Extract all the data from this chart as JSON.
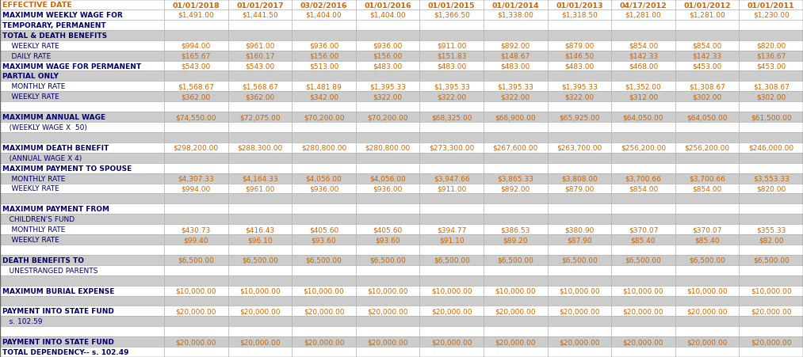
{
  "columns": [
    "EFFECTIVE DATE",
    "01/01/2018",
    "01/01/2017",
    "03/02/2016",
    "01/01/2016",
    "01/01/2015",
    "01/01/2014",
    "01/01/2013",
    "04/17/2012",
    "01/01/2012",
    "01/01/2011"
  ],
  "rows": [
    {
      "label": "MAXIMUM WEEKLY WAGE FOR",
      "indent": false,
      "bold": true,
      "values": [
        "$1,491.00",
        "$1,441.50",
        "$1,404.00",
        "$1,404.00",
        "$1,366.50",
        "$1,338.00",
        "$1,318.50",
        "$1,281.00",
        "$1,281.00",
        "$1,230.00"
      ],
      "bg": "white"
    },
    {
      "label": "TEMPORARY, PERMANENT",
      "indent": false,
      "bold": true,
      "values": [
        "",
        "",
        "",
        "",
        "",
        "",
        "",
        "",
        "",
        ""
      ],
      "bg": "white"
    },
    {
      "label": "TOTAL & DEATH BENEFITS",
      "indent": false,
      "bold": true,
      "values": [
        "",
        "",
        "",
        "",
        "",
        "",
        "",
        "",
        "",
        ""
      ],
      "bg": "silver"
    },
    {
      "label": "    WEEKLY RATE",
      "indent": true,
      "bold": false,
      "values": [
        "$994.00",
        "$961.00",
        "$936.00",
        "$936.00",
        "$911.00",
        "$892.00",
        "$879.00",
        "$854.00",
        "$854.00",
        "$820.00"
      ],
      "bg": "white"
    },
    {
      "label": "    DAILY RATE",
      "indent": true,
      "bold": false,
      "values": [
        "$165.67",
        "$160.17",
        "$156.00",
        "$156.00",
        "$151.83",
        "$148.67",
        "$146.50",
        "$142.33",
        "$142.33",
        "$136.67"
      ],
      "bg": "silver"
    },
    {
      "label": "MAXIMUM WAGE FOR PERMANENT",
      "indent": false,
      "bold": true,
      "values": [
        "$543.00",
        "$543.00",
        "$513.00",
        "$483.00",
        "$483.00",
        "$483.00",
        "$483.00",
        "$468.00",
        "$453.00",
        "$453.00"
      ],
      "bg": "white"
    },
    {
      "label": "PARTIAL ONLY",
      "indent": false,
      "bold": true,
      "values": [
        "",
        "",
        "",
        "",
        "",
        "",
        "",
        "",
        "",
        ""
      ],
      "bg": "silver"
    },
    {
      "label": "    MONTHLY RATE",
      "indent": true,
      "bold": false,
      "values": [
        "$1,568.67",
        "$1,568.67",
        "$1,481.89",
        "$1,395.33",
        "$1,395.33",
        "$1,395.33",
        "$1,395.33",
        "$1,352.00",
        "$1,308.67",
        "$1,308.67"
      ],
      "bg": "white"
    },
    {
      "label": "    WEEKLY RATE",
      "indent": true,
      "bold": false,
      "values": [
        "$362.00",
        "$362.00",
        "$342.00",
        "$322.00",
        "$322.00",
        "$322.00",
        "$322.00",
        "$312.00",
        "$302.00",
        "$302.00"
      ],
      "bg": "silver"
    },
    {
      "label": "",
      "indent": false,
      "bold": false,
      "values": [
        "",
        "",
        "",
        "",
        "",
        "",
        "",
        "",
        "",
        ""
      ],
      "bg": "white"
    },
    {
      "label": "MAXIMUM ANNUAL WAGE",
      "indent": false,
      "bold": true,
      "values": [
        "$74,550.00",
        "$72,075.00",
        "$70,200.00",
        "$70,200.00",
        "$68,325.00",
        "$66,900.00",
        "$65,925.00",
        "$64,050.00",
        "$64,050.00",
        "$61,500.00"
      ],
      "bg": "silver"
    },
    {
      "label": "   (WEEKLY WAGE X  50)",
      "indent": true,
      "bold": false,
      "values": [
        "",
        "",
        "",
        "",
        "",
        "",
        "",
        "",
        "",
        ""
      ],
      "bg": "white"
    },
    {
      "label": "",
      "indent": false,
      "bold": false,
      "values": [
        "",
        "",
        "",
        "",
        "",
        "",
        "",
        "",
        "",
        ""
      ],
      "bg": "silver"
    },
    {
      "label": "MAXIMUM DEATH BENEFIT",
      "indent": false,
      "bold": true,
      "values": [
        "$298,200.00",
        "$288,300.00",
        "$280,800.00",
        "$280,800.00",
        "$273,300.00",
        "$267,600.00",
        "$263,700.00",
        "$256,200.00",
        "$256,200.00",
        "$246,000.00"
      ],
      "bg": "white"
    },
    {
      "label": "   (ANNUAL WAGE X 4)",
      "indent": true,
      "bold": false,
      "values": [
        "",
        "",
        "",
        "",
        "",
        "",
        "",
        "",
        "",
        ""
      ],
      "bg": "silver"
    },
    {
      "label": "MAXIMUM PAYMENT TO SPOUSE",
      "indent": false,
      "bold": true,
      "values": [
        "",
        "",
        "",
        "",
        "",
        "",
        "",
        "",
        "",
        ""
      ],
      "bg": "white"
    },
    {
      "label": "    MONTHLY RATE",
      "indent": true,
      "bold": false,
      "values": [
        "$4,307.33",
        "$4,164.33",
        "$4,056.00",
        "$4,056.00",
        "$3,947.66",
        "$3,865.33",
        "$3,808.00",
        "$3,700.66",
        "$3,700.66",
        "$3,553.33"
      ],
      "bg": "silver"
    },
    {
      "label": "    WEEKLY RATE",
      "indent": true,
      "bold": false,
      "values": [
        "$994.00",
        "$961.00",
        "$936.00",
        "$936.00",
        "$911.00",
        "$892.00",
        "$879.00",
        "$854.00",
        "$854.00",
        "$820.00"
      ],
      "bg": "white"
    },
    {
      "label": "",
      "indent": false,
      "bold": false,
      "values": [
        "",
        "",
        "",
        "",
        "",
        "",
        "",
        "",
        "",
        ""
      ],
      "bg": "silver"
    },
    {
      "label": "MAXIMUM PAYMENT FROM",
      "indent": false,
      "bold": true,
      "values": [
        "",
        "",
        "",
        "",
        "",
        "",
        "",
        "",
        "",
        ""
      ],
      "bg": "white"
    },
    {
      "label": "   CHILDREN'S FUND",
      "indent": true,
      "bold": false,
      "values": [
        "",
        "",
        "",
        "",
        "",
        "",
        "",
        "",
        "",
        ""
      ],
      "bg": "silver"
    },
    {
      "label": "    MONTHLY RATE",
      "indent": true,
      "bold": false,
      "values": [
        "$430.73",
        "$416.43",
        "$405.60",
        "$405.60",
        "$394.77",
        "$386.53",
        "$380.90",
        "$370.07",
        "$370.07",
        "$355.33"
      ],
      "bg": "white"
    },
    {
      "label": "    WEEKLY RATE",
      "indent": true,
      "bold": false,
      "values": [
        "$99.40",
        "$96.10",
        "$93.60",
        "$93.60",
        "$91.10",
        "$89.20",
        "$87.90",
        "$85.40",
        "$85.40",
        "$82.00"
      ],
      "bg": "silver"
    },
    {
      "label": "",
      "indent": false,
      "bold": false,
      "values": [
        "",
        "",
        "",
        "",
        "",
        "",
        "",
        "",
        "",
        ""
      ],
      "bg": "white"
    },
    {
      "label": "DEATH BENEFITS TO",
      "indent": false,
      "bold": true,
      "values": [
        "$6,500.00",
        "$6,500.00",
        "$6,500.00",
        "$6,500.00",
        "$6,500.00",
        "$6,500.00",
        "$6,500.00",
        "$6,500.00",
        "$6,500.00",
        "$6,500.00"
      ],
      "bg": "silver"
    },
    {
      "label": "   UNESTRANGED PARENTS",
      "indent": true,
      "bold": false,
      "values": [
        "",
        "",
        "",
        "",
        "",
        "",
        "",
        "",
        "",
        ""
      ],
      "bg": "white"
    },
    {
      "label": "",
      "indent": false,
      "bold": false,
      "values": [
        "",
        "",
        "",
        "",
        "",
        "",
        "",
        "",
        "",
        ""
      ],
      "bg": "silver"
    },
    {
      "label": "MAXIMUM BURIAL EXPENSE",
      "indent": false,
      "bold": true,
      "values": [
        "$10,000.00",
        "$10,000.00",
        "$10,000.00",
        "$10,000.00",
        "$10,000.00",
        "$10,000.00",
        "$10,000.00",
        "$10,000.00",
        "$10,000.00",
        "$10,000.00"
      ],
      "bg": "white"
    },
    {
      "label": "",
      "indent": false,
      "bold": false,
      "values": [
        "",
        "",
        "",
        "",
        "",
        "",
        "",
        "",
        "",
        ""
      ],
      "bg": "silver"
    },
    {
      "label": "PAYMENT INTO STATE FUND",
      "indent": false,
      "bold": true,
      "values": [
        "$20,000.00",
        "$20,000.00",
        "$20,000.00",
        "$20,000.00",
        "$20,000.00",
        "$20,000.00",
        "$20,000.00",
        "$20,000.00",
        "$20,000.00",
        "$20,000.00"
      ],
      "bg": "white"
    },
    {
      "label": "   s. 102.59",
      "indent": true,
      "bold": false,
      "values": [
        "",
        "",
        "",
        "",
        "",
        "",
        "",
        "",
        "",
        ""
      ],
      "bg": "silver"
    },
    {
      "label": "",
      "indent": false,
      "bold": false,
      "values": [
        "",
        "",
        "",
        "",
        "",
        "",
        "",
        "",
        "",
        ""
      ],
      "bg": "white"
    },
    {
      "label": "PAYMENT INTO STATE FUND",
      "indent": false,
      "bold": true,
      "values": [
        "$20,000.00",
        "$20,000.00",
        "$20,000.00",
        "$20,000.00",
        "$20,000.00",
        "$20,000.00",
        "$20,000.00",
        "$20,000.00",
        "$20,000.00",
        "$20,000.00"
      ],
      "bg": "silver"
    },
    {
      "label": "TOTAL DEPENDENCY-- s. 102.49",
      "indent": false,
      "bold": true,
      "values": [
        "",
        "",
        "",
        "",
        "",
        "",
        "",
        "",
        "",
        ""
      ],
      "bg": "white"
    }
  ],
  "header_text_color": "#cc6600",
  "data_text_color": "#cc6600",
  "label_bold_color": "#000066",
  "label_normal_color": "#000066",
  "border_color": "#aaaaaa",
  "silver_bg": "#cccccc",
  "white_bg": "#ffffff",
  "font_size": 6.5,
  "header_font_size": 6.8
}
